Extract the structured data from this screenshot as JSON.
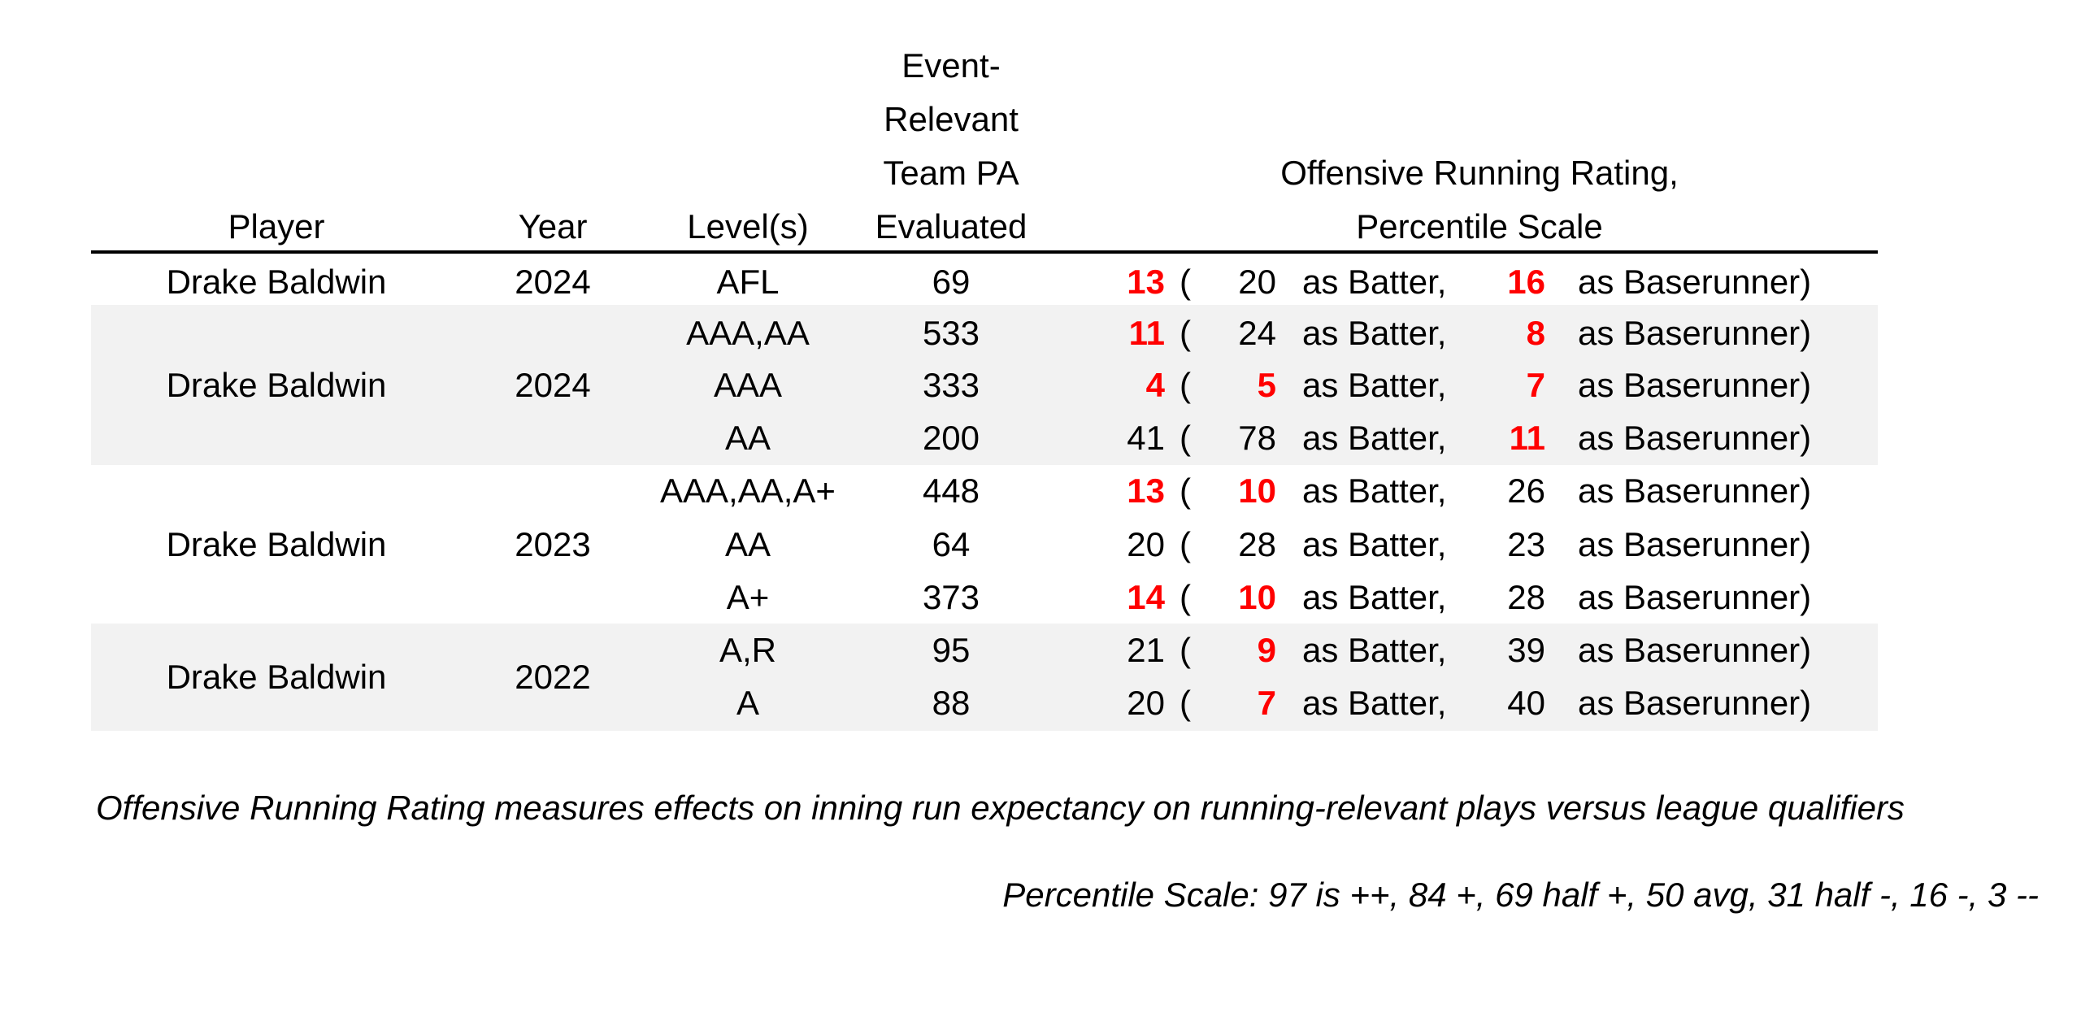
{
  "headers": {
    "player": "Player",
    "year": "Year",
    "levels": "Level(s)",
    "pa": [
      "Event-",
      "Relevant",
      "Team PA",
      "Evaluated"
    ],
    "rating": [
      "Offensive Running Rating,",
      "Percentile Scale"
    ]
  },
  "labels": {
    "paren": "(",
    "batter": "as Batter,",
    "runner": "as Baserunner)"
  },
  "groups": [
    {
      "player": "Drake Baldwin",
      "year": "2024"
    },
    {
      "player": "Drake Baldwin",
      "year": "2024"
    },
    {
      "player": "Drake Baldwin",
      "year": "2023"
    },
    {
      "player": "Drake Baldwin",
      "year": "2022"
    }
  ],
  "rows": [
    {
      "level": "AFL",
      "pa": "69",
      "overall": "13",
      "batter": "20",
      "runner": "16"
    },
    {
      "level": "AAA,AA",
      "pa": "533",
      "overall": "11",
      "batter": "24",
      "runner": "8"
    },
    {
      "level": "AAA",
      "pa": "333",
      "overall": "4",
      "batter": "5",
      "runner": "7"
    },
    {
      "level": "AA",
      "pa": "200",
      "overall": "41",
      "batter": "78",
      "runner": "11"
    },
    {
      "level": "AAA,AA,A+",
      "pa": "448",
      "overall": "13",
      "batter": "10",
      "runner": "26"
    },
    {
      "level": "AA",
      "pa": "64",
      "overall": "20",
      "batter": "28",
      "runner": "23"
    },
    {
      "level": "A+",
      "pa": "373",
      "overall": "14",
      "batter": "10",
      "runner": "28"
    },
    {
      "level": "A,R",
      "pa": "95",
      "overall": "21",
      "batter": "9",
      "runner": "39"
    },
    {
      "level": "A",
      "pa": "88",
      "overall": "20",
      "batter": "7",
      "runner": "40"
    }
  ],
  "highlight_rule": {
    "threshold_max": 16,
    "color": "#ff0000"
  },
  "band_color": "#f2f2f2",
  "notes": {
    "definition": "Offensive Running Rating measures effects on inning run expectancy on running-relevant plays versus league qualifiers",
    "scale": "Percentile Scale: 97 is ++, 84 +, 69 half +, 50 avg, 31 half -, 16 -, 3 --"
  }
}
